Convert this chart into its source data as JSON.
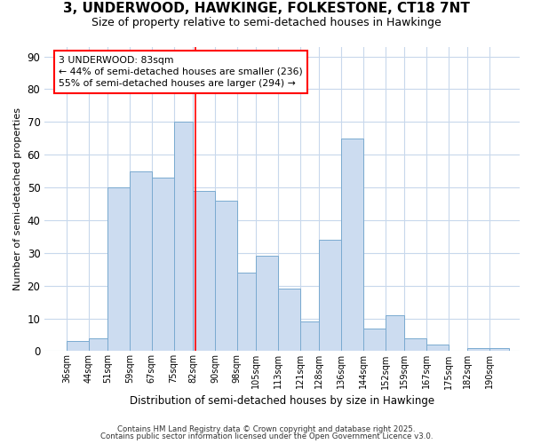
{
  "title": "3, UNDERWOOD, HAWKINGE, FOLKESTONE, CT18 7NT",
  "subtitle": "Size of property relative to semi-detached houses in Hawkinge",
  "xlabel": "Distribution of semi-detached houses by size in Hawkinge",
  "ylabel": "Number of semi-detached properties",
  "bar_left_edges": [
    36,
    44,
    51,
    59,
    67,
    75,
    82,
    90,
    98,
    105,
    113,
    121,
    128,
    136,
    144,
    152,
    159,
    167,
    175,
    182,
    190
  ],
  "bar_widths": [
    8,
    7,
    8,
    8,
    8,
    7,
    8,
    8,
    7,
    8,
    8,
    7,
    8,
    8,
    8,
    7,
    8,
    8,
    7,
    8,
    7
  ],
  "bar_heights": [
    3,
    4,
    50,
    55,
    53,
    70,
    49,
    46,
    24,
    29,
    19,
    9,
    34,
    65,
    7,
    11,
    4,
    2,
    0,
    1,
    1
  ],
  "bar_color": "#ccdcf0",
  "bar_edge_color": "#7aaad0",
  "grid_color": "#c8d8ec",
  "vline_x": 83,
  "vline_color": "red",
  "annotation_text": "3 UNDERWOOD: 83sqm\n← 44% of semi-detached houses are smaller (236)\n55% of semi-detached houses are larger (294) →",
  "annotation_box_color": "white",
  "annotation_edge_color": "red",
  "tick_labels": [
    "36sqm",
    "44sqm",
    "51sqm",
    "59sqm",
    "67sqm",
    "75sqm",
    "82sqm",
    "90sqm",
    "98sqm",
    "105sqm",
    "113sqm",
    "121sqm",
    "128sqm",
    "136sqm",
    "144sqm",
    "152sqm",
    "159sqm",
    "167sqm",
    "175sqm",
    "182sqm",
    "190sqm"
  ],
  "tick_positions": [
    36,
    44,
    51,
    59,
    67,
    75,
    82,
    90,
    98,
    105,
    113,
    121,
    128,
    136,
    144,
    152,
    159,
    167,
    175,
    182,
    190
  ],
  "yticks": [
    0,
    10,
    20,
    30,
    40,
    50,
    60,
    70,
    80,
    90
  ],
  "ylim": [
    0,
    93
  ],
  "xlim": [
    28,
    201
  ],
  "footer_line1": "Contains HM Land Registry data © Crown copyright and database right 2025.",
  "footer_line2": "Contains public sector information licensed under the Open Government Licence v3.0.",
  "bg_color": "#ffffff",
  "plot_bg_color": "#ffffff"
}
